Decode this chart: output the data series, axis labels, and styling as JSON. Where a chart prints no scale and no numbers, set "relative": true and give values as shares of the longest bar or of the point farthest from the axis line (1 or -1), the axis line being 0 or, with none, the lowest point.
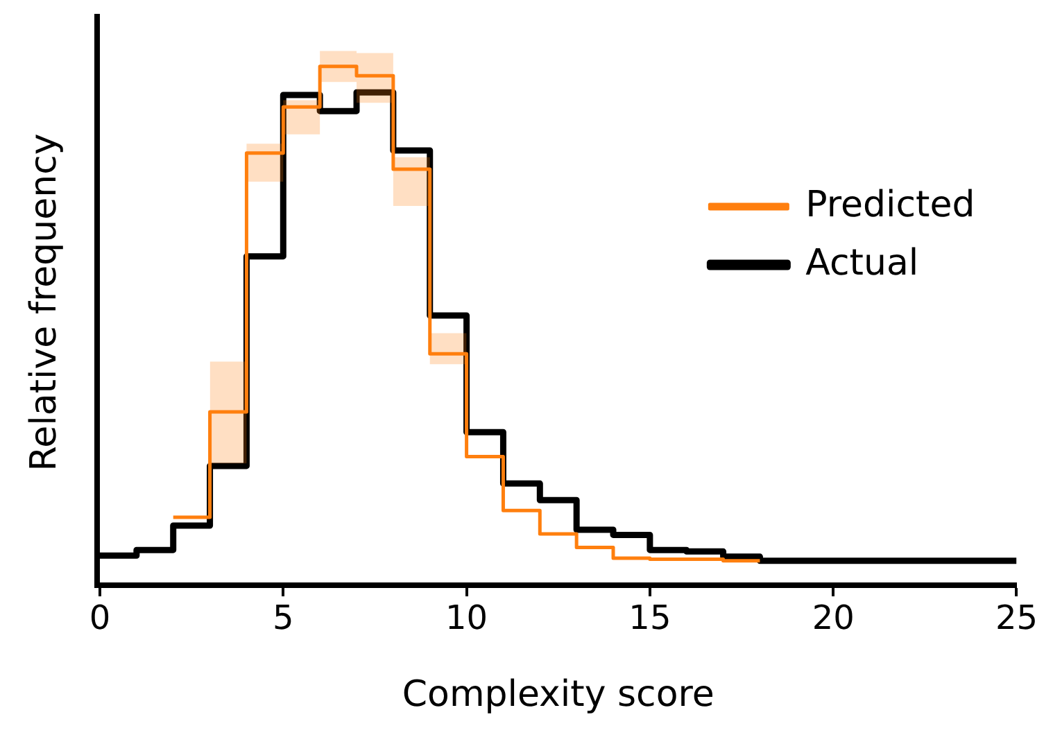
{
  "chart_data": {
    "type": "step",
    "xlabel": "Complexity score",
    "ylabel": "Relative frequency",
    "relative": true,
    "x": [
      0,
      1,
      2,
      3,
      4,
      5,
      6,
      7,
      8,
      9,
      10,
      11,
      12,
      13,
      14,
      15,
      16,
      17,
      18,
      19,
      20,
      21,
      22,
      23,
      24,
      25
    ],
    "xlim": [
      0,
      25
    ],
    "xticks": [
      0,
      5,
      10,
      15,
      20,
      25
    ],
    "legend": "right",
    "series": [
      {
        "name": "Predicted",
        "color": "#ff7f0e",
        "values": [
          null,
          null,
          0.131,
          0.334,
          0.833,
          0.922,
          1,
          0.982,
          0.802,
          0.446,
          0.248,
          0.144,
          0.099,
          0.073,
          0.052,
          0.05,
          0.05,
          0.047,
          0.047,
          null,
          null,
          null,
          null,
          null,
          null,
          null
        ],
        "lower": [
          null,
          null,
          null,
          0.235,
          0.778,
          0.869,
          0.97,
          0.93,
          0.731,
          0.426,
          0.426,
          null,
          null,
          null,
          null,
          null,
          null,
          null,
          null,
          null,
          null,
          null,
          null,
          null,
          null,
          null
        ],
        "upper": [
          null,
          null,
          null,
          0.431,
          0.851,
          0.935,
          1.03,
          1.026,
          0.825,
          0.486,
          0.486,
          null,
          null,
          null,
          null,
          null,
          null,
          null,
          null,
          null,
          null,
          null,
          null,
          null,
          null,
          null
        ]
      },
      {
        "name": "Actual",
        "color": "#000000",
        "values": [
          0.057,
          0.068,
          0.115,
          0.23,
          0.634,
          0.945,
          0.914,
          0.95,
          0.838,
          0.52,
          0.295,
          0.196,
          0.164,
          0.107,
          0.097,
          0.068,
          0.065,
          0.055,
          0.047,
          0.047,
          0.047,
          0.047,
          0.047,
          0.047,
          0.047,
          0.047
        ]
      }
    ]
  }
}
